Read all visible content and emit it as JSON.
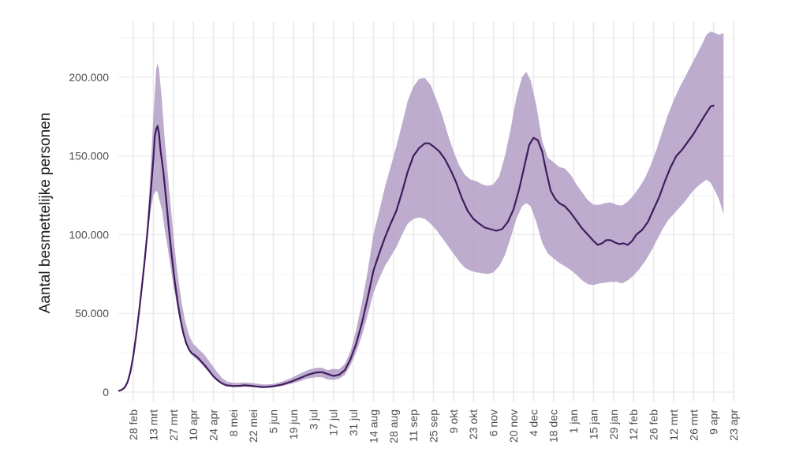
{
  "chart_data": {
    "type": "line",
    "title": "",
    "xlabel": "",
    "ylabel": "Aantal besmettelijke personen",
    "ylim": [
      -6000,
      235000
    ],
    "xlim": [
      -10.5,
      420
    ],
    "grid": true,
    "legend": "none",
    "colors": {
      "line": "#3f1c5e",
      "band": "#b39dc6",
      "grid": "#ebebeb"
    },
    "y_ticks": [
      {
        "value": 0,
        "label": "0"
      },
      {
        "value": 50000,
        "label": "50.000"
      },
      {
        "value": 100000,
        "label": "100.000"
      },
      {
        "value": 150000,
        "label": "150.000"
      },
      {
        "value": 200000,
        "label": "200.000"
      }
    ],
    "x_ticks": [
      {
        "day": 0,
        "label": "28 feb"
      },
      {
        "day": 14,
        "label": "13 mrt"
      },
      {
        "day": 28,
        "label": "27 mrt"
      },
      {
        "day": 42,
        "label": "10 apr"
      },
      {
        "day": 56,
        "label": "24 apr"
      },
      {
        "day": 70,
        "label": "8 mei"
      },
      {
        "day": 84,
        "label": "22 mei"
      },
      {
        "day": 98,
        "label": "5 jun"
      },
      {
        "day": 112,
        "label": "19 jun"
      },
      {
        "day": 126,
        "label": "3 jul"
      },
      {
        "day": 140,
        "label": "17 jul"
      },
      {
        "day": 154,
        "label": "31 jul"
      },
      {
        "day": 168,
        "label": "14 aug"
      },
      {
        "day": 182,
        "label": "28 aug"
      },
      {
        "day": 196,
        "label": "11 sep"
      },
      {
        "day": 210,
        "label": "25 sep"
      },
      {
        "day": 224,
        "label": "9 okt"
      },
      {
        "day": 238,
        "label": "23 okt"
      },
      {
        "day": 252,
        "label": "6 nov"
      },
      {
        "day": 266,
        "label": "20 nov"
      },
      {
        "day": 280,
        "label": "4 dec"
      },
      {
        "day": 294,
        "label": "18 dec"
      },
      {
        "day": 308,
        "label": "1 jan"
      },
      {
        "day": 322,
        "label": "15 jan"
      },
      {
        "day": 336,
        "label": "29 jan"
      },
      {
        "day": 350,
        "label": "12 feb"
      },
      {
        "day": 364,
        "label": "26 feb"
      },
      {
        "day": 378,
        "label": "12 mrt"
      },
      {
        "day": 392,
        "label": "26 mrt"
      },
      {
        "day": 406,
        "label": "9 apr"
      },
      {
        "day": 420,
        "label": "23 apr"
      }
    ],
    "series": [
      {
        "type": "line",
        "points": [
          [
            -10,
            800
          ],
          [
            -8,
            1500
          ],
          [
            -6,
            3000
          ],
          [
            -4,
            6500
          ],
          [
            -2,
            13000
          ],
          [
            0,
            23000
          ],
          [
            2,
            36000
          ],
          [
            4,
            51000
          ],
          [
            6,
            67000
          ],
          [
            8,
            84000
          ],
          [
            10,
            103000
          ],
          [
            12,
            125000
          ],
          [
            14,
            148000
          ],
          [
            15,
            162000
          ],
          [
            16,
            167000
          ],
          [
            17,
            169000
          ],
          [
            18,
            164000
          ],
          [
            19,
            154000
          ],
          [
            21,
            140000
          ],
          [
            23,
            122000
          ],
          [
            25,
            103000
          ],
          [
            27,
            86000
          ],
          [
            29,
            70000
          ],
          [
            31,
            57000
          ],
          [
            33,
            46000
          ],
          [
            35,
            37500
          ],
          [
            37,
            31000
          ],
          [
            39,
            27000
          ],
          [
            41,
            24500
          ],
          [
            43,
            23500
          ],
          [
            45,
            22000
          ],
          [
            47,
            20000
          ],
          [
            50,
            17000
          ],
          [
            53,
            13500
          ],
          [
            56,
            10000
          ],
          [
            59,
            7500
          ],
          [
            62,
            5500
          ],
          [
            65,
            4300
          ],
          [
            70,
            3800
          ],
          [
            75,
            4000
          ],
          [
            78,
            4300
          ],
          [
            82,
            4000
          ],
          [
            86,
            3600
          ],
          [
            90,
            3200
          ],
          [
            94,
            3300
          ],
          [
            98,
            3700
          ],
          [
            104,
            4800
          ],
          [
            110,
            6500
          ],
          [
            116,
            8700
          ],
          [
            122,
            11000
          ],
          [
            128,
            12500
          ],
          [
            132,
            12700
          ],
          [
            136,
            11500
          ],
          [
            140,
            10300
          ],
          [
            144,
            11000
          ],
          [
            148,
            14000
          ],
          [
            152,
            21000
          ],
          [
            156,
            31000
          ],
          [
            160,
            44000
          ],
          [
            164,
            60000
          ],
          [
            168,
            77000
          ],
          [
            172,
            88000
          ],
          [
            176,
            98000
          ],
          [
            180,
            107000
          ],
          [
            184,
            115000
          ],
          [
            188,
            127000
          ],
          [
            192,
            140000
          ],
          [
            196,
            150000
          ],
          [
            200,
            155000
          ],
          [
            204,
            158000
          ],
          [
            207,
            158000
          ],
          [
            210,
            156000
          ],
          [
            214,
            153000
          ],
          [
            218,
            148000
          ],
          [
            222,
            141000
          ],
          [
            226,
            133000
          ],
          [
            230,
            123000
          ],
          [
            234,
            115000
          ],
          [
            238,
            110000
          ],
          [
            242,
            107000
          ],
          [
            246,
            104500
          ],
          [
            250,
            103500
          ],
          [
            254,
            102500
          ],
          [
            258,
            103500
          ],
          [
            262,
            108000
          ],
          [
            266,
            116000
          ],
          [
            270,
            129000
          ],
          [
            274,
            145000
          ],
          [
            277,
            157000
          ],
          [
            280,
            161500
          ],
          [
            283,
            160000
          ],
          [
            286,
            153000
          ],
          [
            289,
            140000
          ],
          [
            292,
            128000
          ],
          [
            295,
            123000
          ],
          [
            298,
            120000
          ],
          [
            302,
            118000
          ],
          [
            306,
            114000
          ],
          [
            310,
            109000
          ],
          [
            314,
            104000
          ],
          [
            318,
            100000
          ],
          [
            322,
            96000
          ],
          [
            325,
            93500
          ],
          [
            328,
            94500
          ],
          [
            331,
            96500
          ],
          [
            334,
            96500
          ],
          [
            337,
            95000
          ],
          [
            340,
            94000
          ],
          [
            343,
            94500
          ],
          [
            346,
            93500
          ],
          [
            349,
            96000
          ],
          [
            352,
            100000
          ],
          [
            356,
            103000
          ],
          [
            360,
            108000
          ],
          [
            364,
            116000
          ],
          [
            368,
            124000
          ],
          [
            372,
            134000
          ],
          [
            376,
            143000
          ],
          [
            380,
            150000
          ],
          [
            384,
            154000
          ],
          [
            388,
            159000
          ],
          [
            392,
            164000
          ],
          [
            396,
            170000
          ],
          [
            400,
            176000
          ],
          [
            404,
            181500
          ],
          [
            406,
            182000
          ]
        ]
      },
      {
        "type": "band",
        "points": [
          [
            -10,
            800,
            800
          ],
          [
            -6,
            3000,
            3000
          ],
          [
            -2,
            13000,
            13000
          ],
          [
            2,
            36000,
            36000
          ],
          [
            6,
            67000,
            67000
          ],
          [
            8,
            83000,
            86000
          ],
          [
            10,
            98000,
            110000
          ],
          [
            12,
            115000,
            140000
          ],
          [
            14,
            125000,
            175000
          ],
          [
            16,
            128000,
            205000
          ],
          [
            17,
            127000,
            209000
          ],
          [
            18,
            123000,
            205000
          ],
          [
            20,
            116000,
            185000
          ],
          [
            22,
            103000,
            160000
          ],
          [
            24,
            92000,
            140000
          ],
          [
            26,
            80000,
            120000
          ],
          [
            28,
            68000,
            100000
          ],
          [
            30,
            58000,
            82000
          ],
          [
            32,
            48000,
            68000
          ],
          [
            34,
            40000,
            56000
          ],
          [
            36,
            33500,
            46000
          ],
          [
            38,
            28500,
            39000
          ],
          [
            40,
            25000,
            34000
          ],
          [
            42,
            22500,
            30500
          ],
          [
            44,
            21000,
            29000
          ],
          [
            46,
            19500,
            27000
          ],
          [
            50,
            15500,
            23500
          ],
          [
            54,
            11500,
            18500
          ],
          [
            58,
            8000,
            13500
          ],
          [
            62,
            5400,
            9000
          ],
          [
            66,
            3900,
            6500
          ],
          [
            72,
            3300,
            5800
          ],
          [
            78,
            3400,
            6200
          ],
          [
            84,
            3100,
            5600
          ],
          [
            92,
            2700,
            4800
          ],
          [
            98,
            3000,
            5200
          ],
          [
            104,
            3800,
            6700
          ],
          [
            110,
            5200,
            8800
          ],
          [
            116,
            6800,
            11500
          ],
          [
            122,
            8600,
            14000
          ],
          [
            128,
            9500,
            15500
          ],
          [
            132,
            9500,
            15500
          ],
          [
            136,
            8000,
            14000
          ],
          [
            140,
            7800,
            14800
          ],
          [
            144,
            8500,
            14500
          ],
          [
            148,
            11000,
            18000
          ],
          [
            152,
            17000,
            26000
          ],
          [
            156,
            25500,
            40000
          ],
          [
            160,
            36000,
            57000
          ],
          [
            164,
            49000,
            77000
          ],
          [
            168,
            63000,
            100000
          ],
          [
            172,
            72000,
            115000
          ],
          [
            176,
            80000,
            130000
          ],
          [
            180,
            86000,
            143000
          ],
          [
            184,
            92000,
            156000
          ],
          [
            188,
            100000,
            170000
          ],
          [
            192,
            107000,
            185000
          ],
          [
            196,
            110000,
            194000
          ],
          [
            200,
            111000,
            199000
          ],
          [
            204,
            110000,
            199500
          ],
          [
            208,
            107000,
            195000
          ],
          [
            212,
            103000,
            186000
          ],
          [
            216,
            98000,
            176000
          ],
          [
            220,
            93000,
            164000
          ],
          [
            224,
            88000,
            153000
          ],
          [
            228,
            83000,
            144000
          ],
          [
            232,
            79000,
            138000
          ],
          [
            236,
            77000,
            135000
          ],
          [
            240,
            76000,
            134000
          ],
          [
            244,
            75500,
            132000
          ],
          [
            248,
            75000,
            131000
          ],
          [
            252,
            76000,
            132000
          ],
          [
            256,
            80000,
            137000
          ],
          [
            260,
            87000,
            150000
          ],
          [
            264,
            98000,
            167000
          ],
          [
            268,
            110000,
            187000
          ],
          [
            272,
            118000,
            200000
          ],
          [
            275,
            120000,
            203500
          ],
          [
            278,
            118000,
            198000
          ],
          [
            282,
            108000,
            182000
          ],
          [
            286,
            95000,
            160000
          ],
          [
            290,
            88000,
            149000
          ],
          [
            294,
            85000,
            146000
          ],
          [
            298,
            82000,
            143000
          ],
          [
            302,
            80000,
            142000
          ],
          [
            306,
            77500,
            138000
          ],
          [
            310,
            74500,
            132000
          ],
          [
            314,
            71000,
            127000
          ],
          [
            318,
            68500,
            122000
          ],
          [
            322,
            68000,
            119000
          ],
          [
            326,
            69000,
            119000
          ],
          [
            330,
            69500,
            120000
          ],
          [
            334,
            70000,
            120500
          ],
          [
            338,
            70000,
            119000
          ],
          [
            342,
            69000,
            118500
          ],
          [
            346,
            71000,
            121000
          ],
          [
            350,
            74000,
            125000
          ],
          [
            354,
            78000,
            130000
          ],
          [
            358,
            83000,
            136000
          ],
          [
            362,
            89000,
            144000
          ],
          [
            366,
            96000,
            154000
          ],
          [
            370,
            103000,
            165000
          ],
          [
            374,
            109000,
            176000
          ],
          [
            378,
            113000,
            185000
          ],
          [
            382,
            117000,
            193000
          ],
          [
            386,
            121000,
            200000
          ],
          [
            390,
            126000,
            207000
          ],
          [
            394,
            130000,
            214000
          ],
          [
            398,
            133000,
            221000
          ],
          [
            401,
            135000,
            227000
          ],
          [
            404,
            133000,
            229000
          ],
          [
            407,
            128000,
            228000
          ],
          [
            410,
            122000,
            227000
          ],
          [
            413,
            113000,
            228000
          ]
        ]
      }
    ]
  }
}
